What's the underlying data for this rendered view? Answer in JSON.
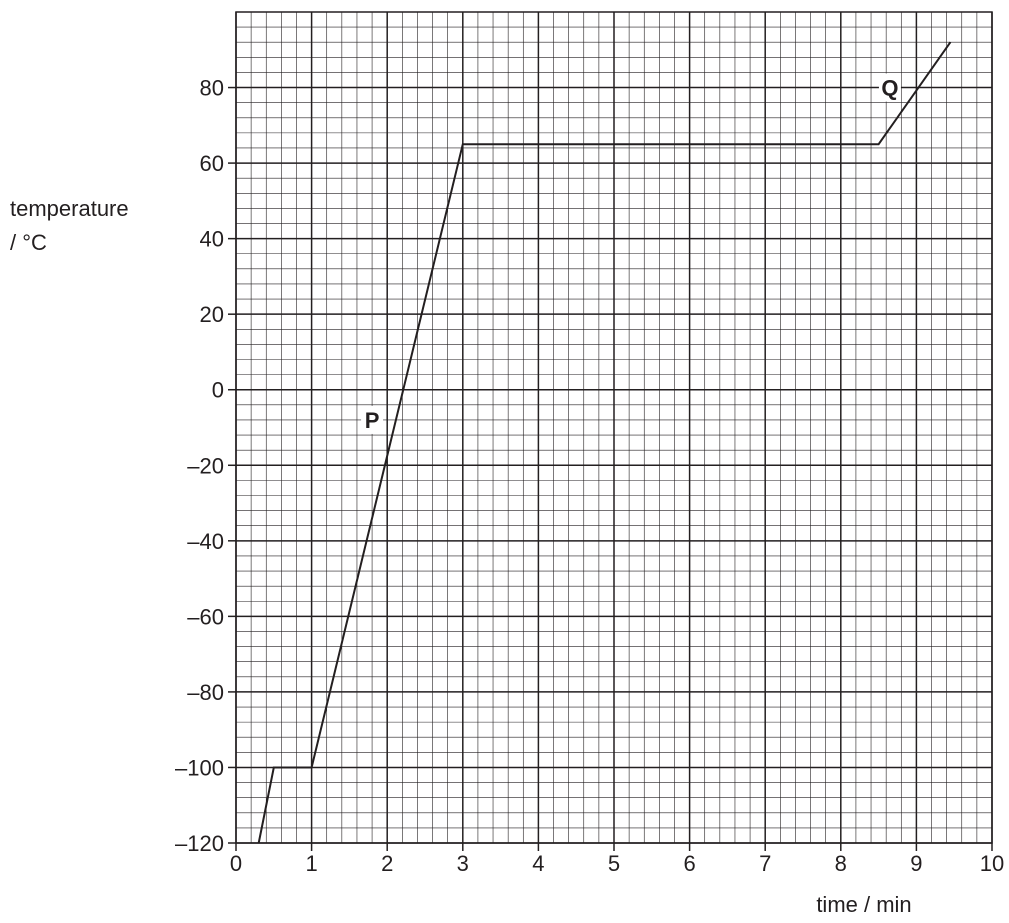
{
  "chart_data": {
    "type": "line",
    "xlabel": "time / min",
    "ylabel_line1": "temperature",
    "ylabel_line2": "/ °C",
    "xlim": [
      0,
      10
    ],
    "ylim": [
      -120,
      100
    ],
    "x_ticks": [
      0,
      1,
      2,
      3,
      4,
      5,
      6,
      7,
      8,
      9,
      10
    ],
    "x_tick_labels": [
      "0",
      "1",
      "2",
      "3",
      "4",
      "5",
      "6",
      "7",
      "8",
      "9",
      "10"
    ],
    "y_ticks": [
      -120,
      -100,
      -80,
      -60,
      -40,
      -20,
      0,
      20,
      40,
      60,
      80
    ],
    "y_tick_labels": [
      "–120",
      "–100",
      "–80",
      "–60",
      "–40",
      "–20",
      "0",
      "20",
      "40",
      "60",
      "80"
    ],
    "grid": "on",
    "minor_grid_x_step": 0.2,
    "minor_grid_y_step": 4,
    "series": [
      {
        "x": [
          0.3,
          0.5,
          1.0,
          3.0,
          8.5,
          9.45
        ],
        "y": [
          -120,
          -100,
          -100,
          65,
          65,
          92
        ]
      }
    ],
    "annotations": [
      {
        "text": "P",
        "x": 1.8,
        "y": -8
      },
      {
        "text": "Q",
        "x": 8.65,
        "y": 80
      }
    ]
  }
}
